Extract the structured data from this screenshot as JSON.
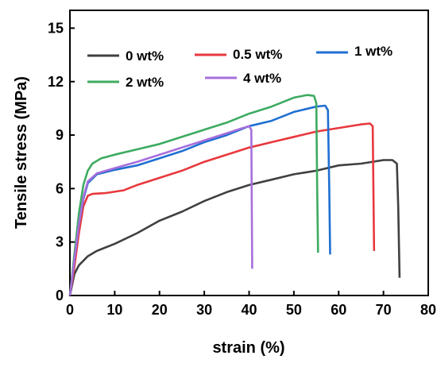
{
  "chart_data": {
    "type": "line",
    "xlabel": "strain (%)",
    "ylabel": "Tensile stress (MPa)",
    "xlim": [
      0,
      80
    ],
    "ylim": [
      0,
      16
    ],
    "xticks": [
      "0",
      "10",
      "20",
      "30",
      "40",
      "50",
      "60",
      "70",
      "80"
    ],
    "yticks": [
      "0",
      "3",
      "6",
      "9",
      "12",
      "15"
    ],
    "grid": false,
    "legend_position": "top",
    "series": [
      {
        "name": "0 wt%",
        "color": "#404040",
        "points": [
          [
            0,
            0
          ],
          [
            1,
            1.2
          ],
          [
            2,
            1.7
          ],
          [
            4,
            2.2
          ],
          [
            6,
            2.5
          ],
          [
            10,
            2.9
          ],
          [
            15,
            3.5
          ],
          [
            20,
            4.2
          ],
          [
            25,
            4.7
          ],
          [
            30,
            5.3
          ],
          [
            35,
            5.8
          ],
          [
            40,
            6.2
          ],
          [
            45,
            6.5
          ],
          [
            50,
            6.8
          ],
          [
            55,
            7.0
          ],
          [
            60,
            7.3
          ],
          [
            65,
            7.4
          ],
          [
            70,
            7.6
          ],
          [
            72,
            7.6
          ],
          [
            73,
            7.4
          ],
          [
            73.3,
            5.0
          ],
          [
            73.6,
            1.0
          ]
        ]
      },
      {
        "name": "0.5 wt%",
        "color": "#e8383d",
        "points": [
          [
            0,
            0
          ],
          [
            1,
            1.6
          ],
          [
            2,
            3.5
          ],
          [
            3,
            5.0
          ],
          [
            4,
            5.6
          ],
          [
            5,
            5.7
          ],
          [
            8,
            5.75
          ],
          [
            12,
            5.9
          ],
          [
            15,
            6.2
          ],
          [
            20,
            6.6
          ],
          [
            25,
            7.0
          ],
          [
            30,
            7.5
          ],
          [
            35,
            7.9
          ],
          [
            40,
            8.3
          ],
          [
            45,
            8.6
          ],
          [
            50,
            8.9
          ],
          [
            55,
            9.2
          ],
          [
            60,
            9.4
          ],
          [
            65,
            9.6
          ],
          [
            67,
            9.65
          ],
          [
            67.6,
            9.5
          ],
          [
            67.8,
            5.0
          ],
          [
            67.9,
            2.5
          ]
        ]
      },
      {
        "name": "1 wt%",
        "color": "#1f6fd1",
        "points": [
          [
            0,
            0
          ],
          [
            1,
            2.0
          ],
          [
            2,
            4.0
          ],
          [
            3,
            5.4
          ],
          [
            4,
            6.3
          ],
          [
            6,
            6.8
          ],
          [
            10,
            7.05
          ],
          [
            15,
            7.3
          ],
          [
            20,
            7.7
          ],
          [
            25,
            8.1
          ],
          [
            30,
            8.6
          ],
          [
            35,
            9.0
          ],
          [
            40,
            9.5
          ],
          [
            45,
            9.8
          ],
          [
            50,
            10.3
          ],
          [
            55,
            10.6
          ],
          [
            57,
            10.65
          ],
          [
            57.6,
            10.4
          ],
          [
            57.9,
            6.0
          ],
          [
            58.1,
            2.3
          ]
        ]
      },
      {
        "name": "2 wt%",
        "color": "#3dab61",
        "points": [
          [
            0,
            0
          ],
          [
            1,
            2.3
          ],
          [
            2,
            4.6
          ],
          [
            3,
            6.2
          ],
          [
            4,
            7.0
          ],
          [
            5,
            7.4
          ],
          [
            7,
            7.7
          ],
          [
            10,
            7.9
          ],
          [
            15,
            8.2
          ],
          [
            20,
            8.5
          ],
          [
            25,
            8.9
          ],
          [
            30,
            9.3
          ],
          [
            35,
            9.7
          ],
          [
            40,
            10.2
          ],
          [
            45,
            10.6
          ],
          [
            50,
            11.1
          ],
          [
            53,
            11.25
          ],
          [
            54.5,
            11.2
          ],
          [
            55,
            10.8
          ],
          [
            55.2,
            6.0
          ],
          [
            55.4,
            2.4
          ]
        ]
      },
      {
        "name": "4 wt%",
        "color": "#a76fdc",
        "points": [
          [
            0,
            0
          ],
          [
            1,
            2.0
          ],
          [
            2,
            4.0
          ],
          [
            3,
            5.5
          ],
          [
            4,
            6.4
          ],
          [
            6,
            6.85
          ],
          [
            10,
            7.15
          ],
          [
            15,
            7.5
          ],
          [
            20,
            7.9
          ],
          [
            25,
            8.3
          ],
          [
            30,
            8.7
          ],
          [
            35,
            9.1
          ],
          [
            38,
            9.35
          ],
          [
            40,
            9.5
          ],
          [
            40.5,
            9.3
          ],
          [
            40.6,
            5.0
          ],
          [
            40.7,
            1.5
          ]
        ]
      }
    ],
    "legend_order": [
      0,
      1,
      2,
      3,
      4
    ]
  }
}
